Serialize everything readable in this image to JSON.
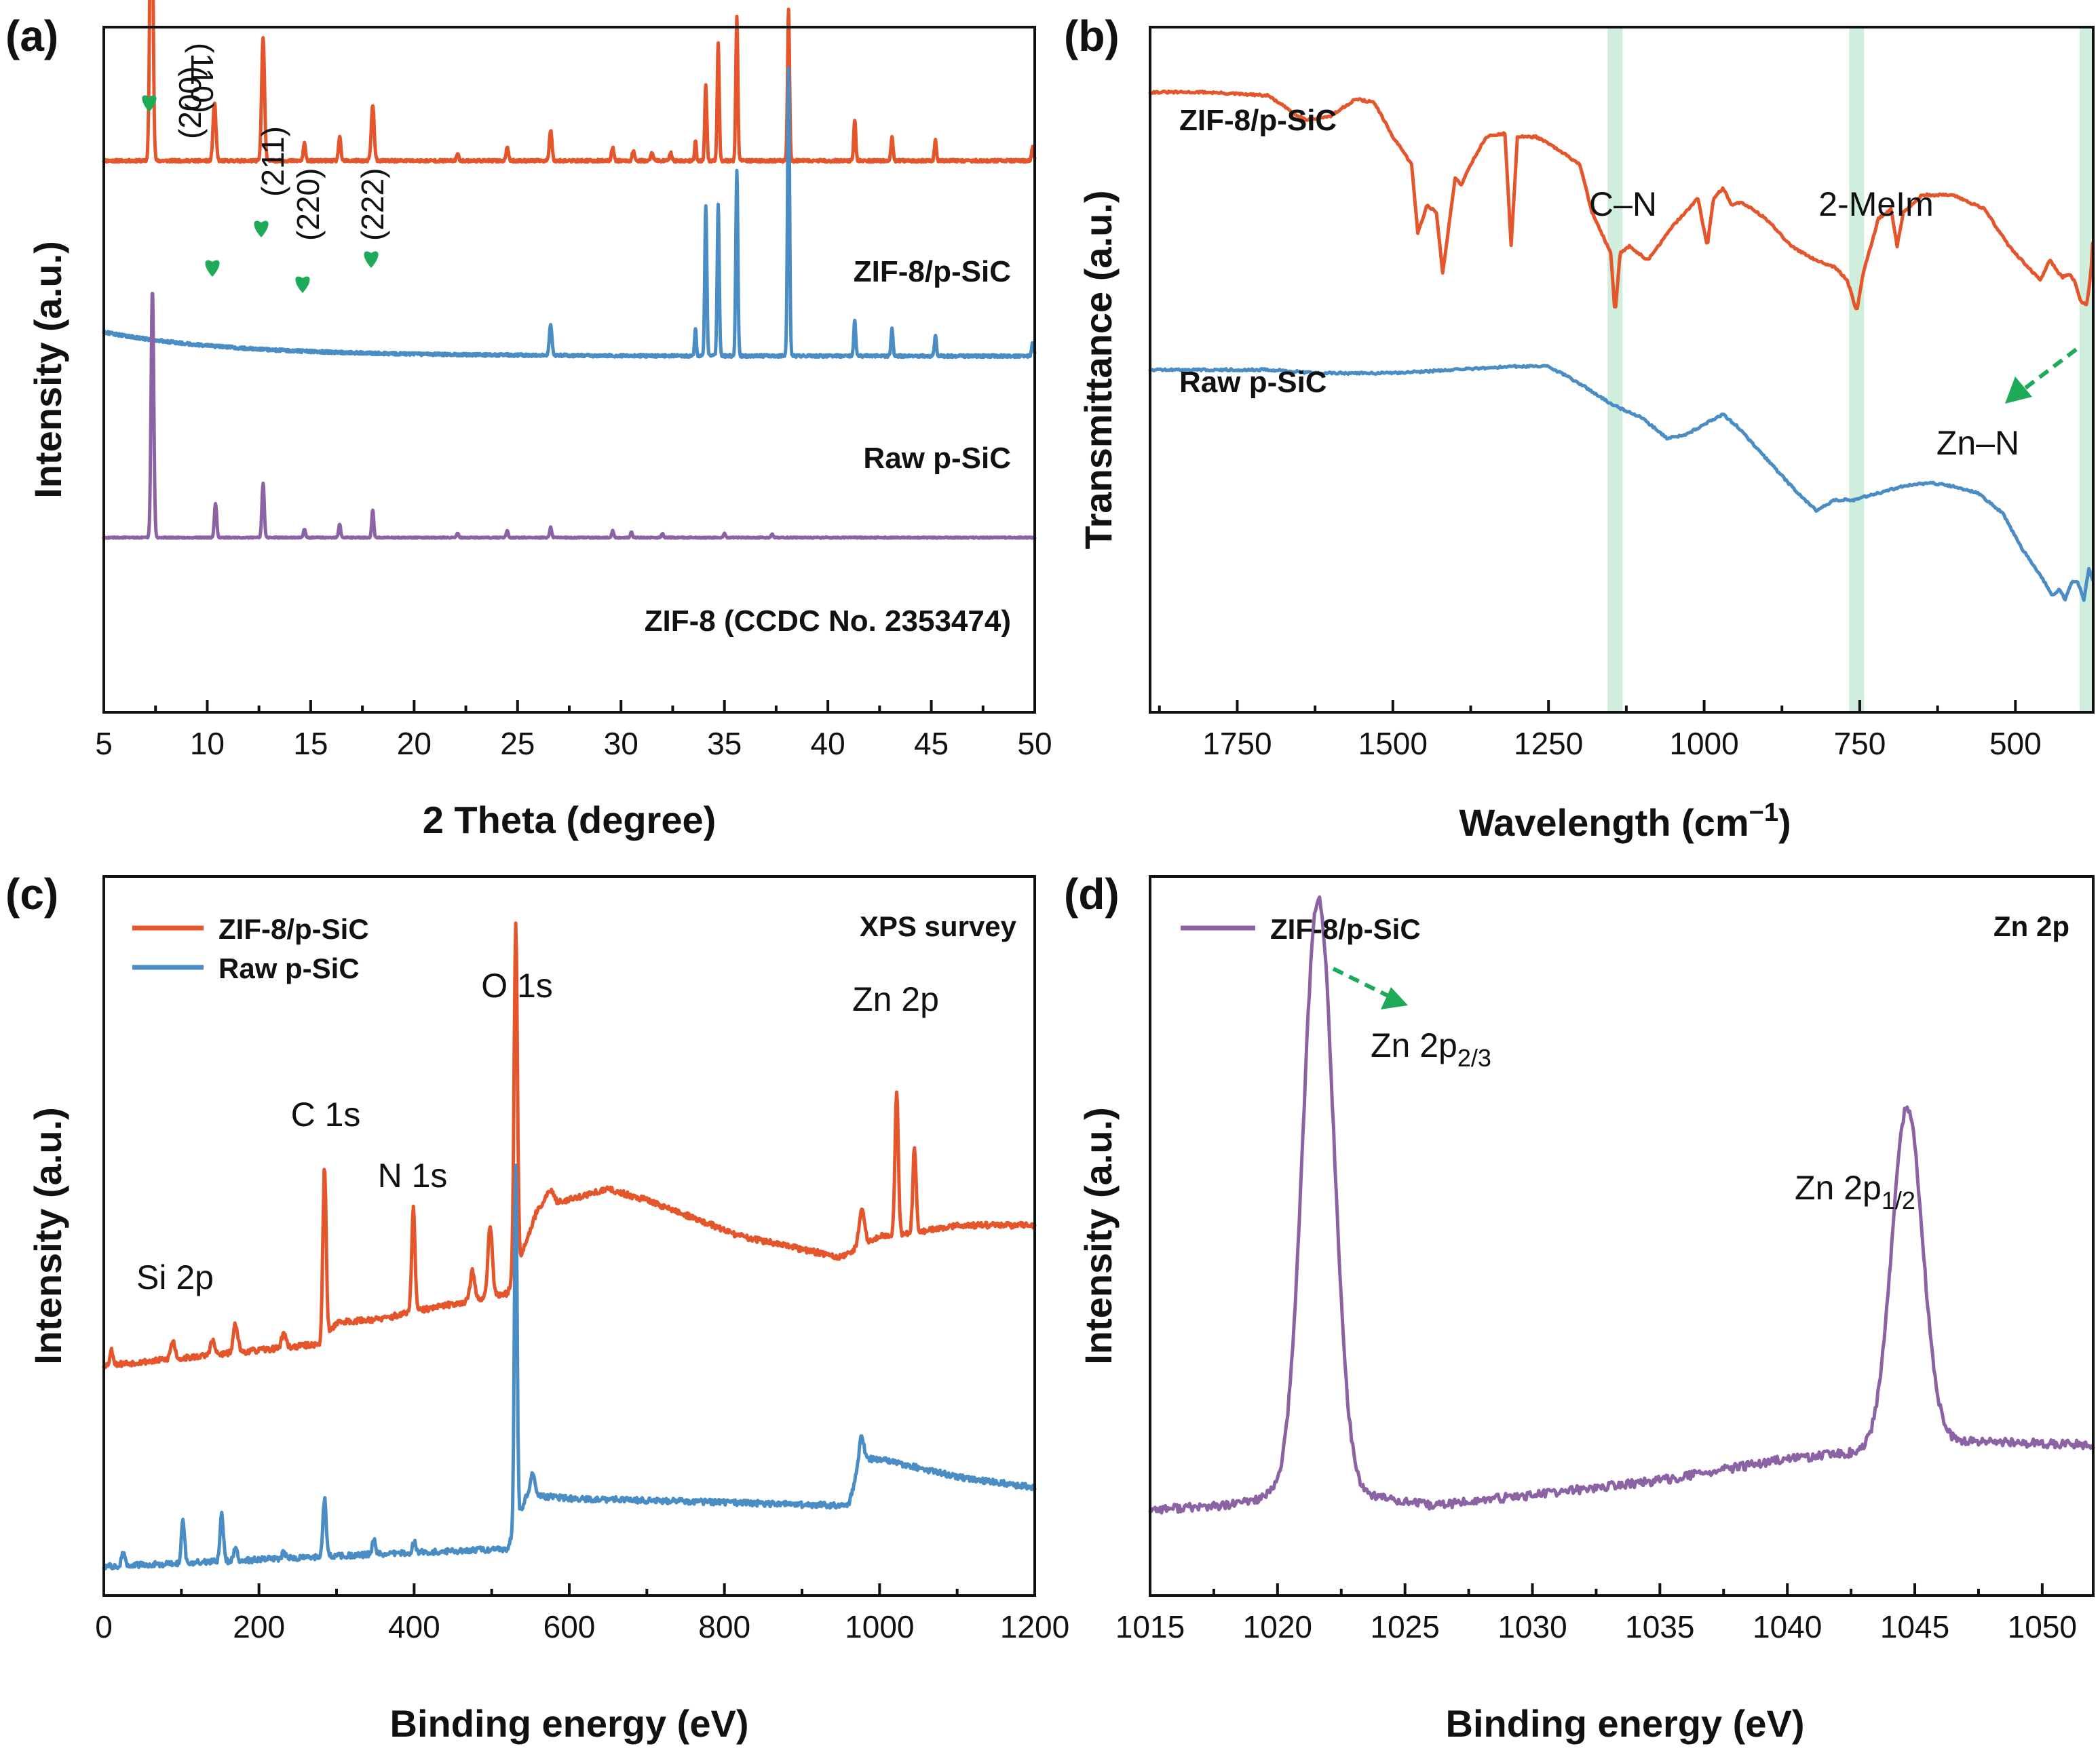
{
  "colors": {
    "zif_ps": "#e4552b",
    "raw": "#4a8cc4",
    "zif8": "#8b63a4",
    "marker": "#1faa5a",
    "band": "#cfeedd",
    "arrow": "#1faa5a"
  },
  "chart_data": [
    {
      "panel": "(a)",
      "type": "line",
      "xlabel": "2 Theta (degree)",
      "ylabel": "Intensity (a.u.)",
      "xlim": [
        5,
        50
      ],
      "xticks": [
        "5",
        "10",
        "15",
        "20",
        "25",
        "30",
        "35",
        "40",
        "45",
        "50"
      ],
      "series": [
        {
          "name": "ZIF-8/p-SiC",
          "color": "#e4552b",
          "baseline_level": 0.805,
          "noise": 0.002,
          "peaks": [
            [
              7.3,
              0.5,
              0.1
            ],
            [
              10.35,
              0.085,
              0.1
            ],
            [
              12.7,
              0.18,
              0.1
            ],
            [
              14.7,
              0.025,
              0.08
            ],
            [
              16.4,
              0.035,
              0.08
            ],
            [
              18.0,
              0.08,
              0.1
            ],
            [
              22.1,
              0.01,
              0.08
            ],
            [
              24.5,
              0.02,
              0.08
            ],
            [
              26.6,
              0.045,
              0.09
            ],
            [
              29.6,
              0.02,
              0.08
            ],
            [
              30.6,
              0.015,
              0.08
            ],
            [
              31.5,
              0.012,
              0.08
            ],
            [
              32.4,
              0.012,
              0.08
            ],
            [
              33.6,
              0.03,
              0.06
            ],
            [
              34.1,
              0.11,
              0.07
            ],
            [
              34.7,
              0.17,
              0.07
            ],
            [
              35.6,
              0.21,
              0.07
            ],
            [
              38.1,
              0.22,
              0.07
            ],
            [
              41.3,
              0.06,
              0.07
            ],
            [
              43.1,
              0.035,
              0.07
            ],
            [
              45.2,
              0.03,
              0.07
            ],
            [
              49.9,
              0.02,
              0.07
            ]
          ]
        },
        {
          "name": "Raw p-SiC",
          "color": "#4a8cc4",
          "baseline_level": 0.52,
          "drop": 0.035,
          "noise": 0.002,
          "peaks": [
            [
              26.6,
              0.045,
              0.09
            ],
            [
              33.6,
              0.04,
              0.06
            ],
            [
              34.1,
              0.22,
              0.07
            ],
            [
              34.7,
              0.22,
              0.07
            ],
            [
              35.6,
              0.27,
              0.07
            ],
            [
              38.1,
              0.42,
              0.07
            ],
            [
              41.3,
              0.05,
              0.07
            ],
            [
              43.1,
              0.04,
              0.07
            ],
            [
              45.2,
              0.03,
              0.07
            ],
            [
              49.9,
              0.02,
              0.07
            ]
          ]
        },
        {
          "name": "ZIF-8 (CCDC No. 2353474)",
          "color": "#8b63a4",
          "baseline_level": 0.255,
          "noise": 0.0008,
          "peaks": [
            [
              7.35,
              0.36,
              0.09
            ],
            [
              10.4,
              0.05,
              0.08
            ],
            [
              12.7,
              0.08,
              0.08
            ],
            [
              14.7,
              0.012,
              0.07
            ],
            [
              16.4,
              0.02,
              0.07
            ],
            [
              18.0,
              0.04,
              0.07
            ],
            [
              22.1,
              0.006,
              0.07
            ],
            [
              24.5,
              0.01,
              0.07
            ],
            [
              26.6,
              0.015,
              0.07
            ],
            [
              29.6,
              0.01,
              0.07
            ],
            [
              30.5,
              0.008,
              0.07
            ],
            [
              32.0,
              0.006,
              0.07
            ],
            [
              35.0,
              0.006,
              0.07
            ],
            [
              37.3,
              0.005,
              0.07
            ]
          ]
        }
      ],
      "trace_labels": [
        "ZIF-8/p-SiC",
        "Raw p-SiC",
        "ZIF-8 (CCDC No. 2353474)"
      ],
      "reflections": [
        {
          "hkl": "(110)",
          "two_theta": 7.3
        },
        {
          "hkl": "(200)",
          "two_theta": 10.35
        },
        {
          "hkl": "(211)",
          "two_theta": 12.7
        },
        {
          "hkl": "(220)",
          "two_theta": 14.7
        },
        {
          "hkl": "(222)",
          "two_theta": 18.0
        }
      ]
    },
    {
      "panel": "(b)",
      "type": "line",
      "xlabel": "Wavelength (cm",
      "xlabel_sup": "−1",
      "xlabel_end": ")",
      "ylabel": "Transmittance (a.u.)",
      "xlim": [
        1890,
        375
      ],
      "xticks": [
        "1750",
        "1500",
        "1250",
        "1000",
        "750",
        "500"
      ],
      "highlight_bands": [
        1143,
        755,
        385
      ],
      "annotations": [
        "C–N",
        "2-MeIm",
        "Zn–N"
      ],
      "series": [
        {
          "name": "ZIF-8/p-SiC",
          "color": "#e4552b",
          "points": [
            [
              1890,
              0.905
            ],
            [
              1800,
              0.905
            ],
            [
              1700,
              0.9
            ],
            [
              1660,
              0.875
            ],
            [
              1640,
              0.865
            ],
            [
              1600,
              0.87
            ],
            [
              1560,
              0.895
            ],
            [
              1530,
              0.89
            ],
            [
              1500,
              0.84
            ],
            [
              1470,
              0.8
            ],
            [
              1460,
              0.7
            ],
            [
              1445,
              0.74
            ],
            [
              1430,
              0.73
            ],
            [
              1420,
              0.64
            ],
            [
              1400,
              0.78
            ],
            [
              1390,
              0.77
            ],
            [
              1375,
              0.8
            ],
            [
              1350,
              0.84
            ],
            [
              1320,
              0.845
            ],
            [
              1310,
              0.68
            ],
            [
              1300,
              0.84
            ],
            [
              1270,
              0.84
            ],
            [
              1250,
              0.83
            ],
            [
              1200,
              0.8
            ],
            [
              1180,
              0.73
            ],
            [
              1165,
              0.7
            ],
            [
              1150,
              0.67
            ],
            [
              1143,
              0.58
            ],
            [
              1135,
              0.67
            ],
            [
              1120,
              0.68
            ],
            [
              1090,
              0.66
            ],
            [
              1050,
              0.71
            ],
            [
              1010,
              0.75
            ],
            [
              995,
              0.68
            ],
            [
              985,
              0.75
            ],
            [
              970,
              0.765
            ],
            [
              955,
              0.74
            ],
            [
              940,
              0.745
            ],
            [
              900,
              0.72
            ],
            [
              860,
              0.68
            ],
            [
              820,
              0.66
            ],
            [
              790,
              0.65
            ],
            [
              770,
              0.63
            ],
            [
              755,
              0.585
            ],
            [
              745,
              0.64
            ],
            [
              720,
              0.72
            ],
            [
              700,
              0.735
            ],
            [
              690,
              0.68
            ],
            [
              680,
              0.73
            ],
            [
              650,
              0.755
            ],
            [
              600,
              0.755
            ],
            [
              550,
              0.735
            ],
            [
              510,
              0.68
            ],
            [
              480,
              0.65
            ],
            [
              460,
              0.63
            ],
            [
              445,
              0.66
            ],
            [
              425,
              0.635
            ],
            [
              415,
              0.64
            ],
            [
              405,
              0.63
            ],
            [
              395,
              0.6
            ],
            [
              385,
              0.595
            ],
            [
              378,
              0.65
            ],
            [
              375,
              0.7
            ]
          ]
        },
        {
          "name": "Raw p-SiC",
          "color": "#4a8cc4",
          "points": [
            [
              1890,
              0.5
            ],
            [
              1800,
              0.5
            ],
            [
              1700,
              0.5
            ],
            [
              1620,
              0.495
            ],
            [
              1500,
              0.495
            ],
            [
              1400,
              0.5
            ],
            [
              1300,
              0.505
            ],
            [
              1250,
              0.505
            ],
            [
              1200,
              0.48
            ],
            [
              1150,
              0.45
            ],
            [
              1100,
              0.43
            ],
            [
              1060,
              0.4
            ],
            [
              1030,
              0.405
            ],
            [
              1000,
              0.42
            ],
            [
              970,
              0.435
            ],
            [
              950,
              0.42
            ],
            [
              900,
              0.37
            ],
            [
              850,
              0.32
            ],
            [
              820,
              0.295
            ],
            [
              790,
              0.31
            ],
            [
              760,
              0.31
            ],
            [
              720,
              0.32
            ],
            [
              680,
              0.33
            ],
            [
              640,
              0.335
            ],
            [
              600,
              0.33
            ],
            [
              560,
              0.32
            ],
            [
              520,
              0.29
            ],
            [
              490,
              0.24
            ],
            [
              460,
              0.2
            ],
            [
              440,
              0.17
            ],
            [
              430,
              0.18
            ],
            [
              420,
              0.165
            ],
            [
              410,
              0.19
            ],
            [
              400,
              0.19
            ],
            [
              390,
              0.165
            ],
            [
              382,
              0.21
            ],
            [
              375,
              0.19
            ]
          ]
        }
      ],
      "trace_labels": [
        "ZIF-8/p-SiC",
        "Raw p-SiC"
      ]
    },
    {
      "panel": "(c)",
      "type": "line",
      "xlabel": "Binding energy (eV)",
      "ylabel": "Intensity (a.u.)",
      "xlim": [
        0,
        1200
      ],
      "xticks": [
        "0",
        "200",
        "400",
        "600",
        "800",
        "1000",
        "1200"
      ],
      "corner_label": "XPS survey",
      "legend": [
        "ZIF-8/p-SiC",
        "Raw p-SiC"
      ],
      "annotations": [
        "Si 2p",
        "C 1s",
        "N 1s",
        "O 1s",
        "Zn 2p"
      ],
      "series": [
        {
          "name": "ZIF-8/p-SiC",
          "color": "#e4552b",
          "background": [
            [
              0,
              0.32
            ],
            [
              100,
              0.33
            ],
            [
              280,
              0.35
            ],
            [
              300,
              0.38
            ],
            [
              360,
              0.385
            ],
            [
              400,
              0.395
            ],
            [
              520,
              0.42
            ],
            [
              560,
              0.54
            ],
            [
              650,
              0.565
            ],
            [
              700,
              0.55
            ],
            [
              820,
              0.5
            ],
            [
              950,
              0.47
            ],
            [
              1000,
              0.5
            ],
            [
              1050,
              0.505
            ],
            [
              1100,
              0.515
            ],
            [
              1200,
              0.515
            ]
          ],
          "noise": 0.004,
          "peaks": [
            [
              10,
              0.02,
              3
            ],
            [
              89,
              0.025,
              4
            ],
            [
              140,
              0.02,
              4
            ],
            [
              170,
              0.04,
              4
            ],
            [
              232,
              0.02,
              4
            ],
            [
              284.5,
              0.24,
              3
            ],
            [
              399,
              0.145,
              3
            ],
            [
              475,
              0.04,
              4
            ],
            [
              498,
              0.1,
              4
            ],
            [
              531,
              0.48,
              3
            ],
            [
              575,
              0.02,
              6
            ],
            [
              977,
              0.05,
              5
            ],
            [
              1022,
              0.2,
              3
            ],
            [
              1045,
              0.12,
              3
            ]
          ]
        },
        {
          "name": "Raw p-SiC",
          "color": "#4a8cc4",
          "background": [
            [
              0,
              0.04
            ],
            [
              200,
              0.05
            ],
            [
              400,
              0.06
            ],
            [
              520,
              0.065
            ],
            [
              545,
              0.14
            ],
            [
              600,
              0.135
            ],
            [
              960,
              0.125
            ],
            [
              975,
              0.19
            ],
            [
              1000,
              0.19
            ],
            [
              1100,
              0.165
            ],
            [
              1200,
              0.15
            ]
          ],
          "noise": 0.004,
          "peaks": [
            [
              25,
              0.02,
              3
            ],
            [
              102,
              0.06,
              3
            ],
            [
              152,
              0.065,
              3
            ],
            [
              170,
              0.02,
              3
            ],
            [
              232,
              0.01,
              3
            ],
            [
              284.5,
              0.08,
              3
            ],
            [
              348,
              0.02,
              3
            ],
            [
              400,
              0.015,
              3
            ],
            [
              531,
              0.5,
              2.5
            ],
            [
              553,
              0.03,
              4
            ],
            [
              977,
              0.03,
              4
            ]
          ]
        }
      ]
    },
    {
      "panel": "(d)",
      "type": "line",
      "xlabel": "Binding energy (eV)",
      "ylabel": "Intensity (a.u.)",
      "xlim": [
        1015,
        1052
      ],
      "xticks": [
        "1015",
        "1020",
        "1025",
        "1030",
        "1035",
        "1040",
        "1045",
        "1050"
      ],
      "corner_label": "Zn 2p",
      "legend": [
        "ZIF-8/p-SiC"
      ],
      "annotations": [
        {
          "base": "Zn 2p",
          "sub": "2/3"
        },
        {
          "base": "Zn 2p",
          "sub": "1/2"
        }
      ],
      "series": [
        {
          "name": "ZIF-8/p-SiC",
          "color": "#8b63a4",
          "background": [
            [
              1015,
              0.12
            ],
            [
              1018,
              0.125
            ],
            [
              1020,
              0.14
            ],
            [
              1023.5,
              0.14
            ],
            [
              1026,
              0.125
            ],
            [
              1030,
              0.14
            ],
            [
              1035,
              0.16
            ],
            [
              1040,
              0.19
            ],
            [
              1043,
              0.2
            ],
            [
              1046,
              0.215
            ],
            [
              1052,
              0.21
            ]
          ],
          "noise": 0.006,
          "peaks": [
            [
              1021.6,
              0.83,
              0.85
            ],
            [
              1044.7,
              0.47,
              0.85
            ]
          ]
        }
      ]
    }
  ]
}
